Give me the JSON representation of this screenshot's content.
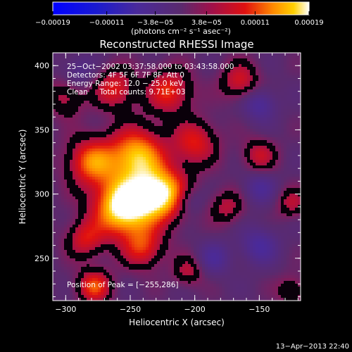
{
  "chart_data": {
    "type": "heatmap",
    "title": "Reconstructed RHESSI Image",
    "xlabel": "Heliocentric X (arcsec)",
    "ylabel": "Heliocentric Y (arcsec)",
    "xlim": [
      -310,
      -118
    ],
    "ylim": [
      217,
      410
    ],
    "x_ticks": [
      -300,
      -250,
      -200,
      -150
    ],
    "x_tick_labels": [
      "−300",
      "−250",
      "−200",
      "−150"
    ],
    "y_ticks": [
      250,
      300,
      350,
      400
    ],
    "y_tick_labels": [
      "250",
      "300",
      "350",
      "400"
    ],
    "colorbar": {
      "min": -0.00019,
      "max": 0.00019,
      "ticks": [
        -0.00019,
        -0.00011,
        -3.8e-05,
        3.8e-05,
        0.00011,
        0.00019
      ],
      "tick_labels": [
        "−0.00019",
        "−0.00011",
        "−3.8e−05",
        "3.8e−05",
        "0.00011",
        "0.00019"
      ],
      "unit_label": "(photons cm⁻² s⁻¹ asec⁻²)"
    },
    "annotations": [
      "25−Oct−2002 03:37:58.000 to 03:43:58.000",
      "Detectors: 4F 5F 6F 7F 8F, Att 0",
      "Energy Range: 12.0 − 25.0 keV",
      "Clean     Total counts: 9.71E+03"
    ],
    "peak_label": "Position of Peak = [−255,286]",
    "peak_position": [
      -255,
      286
    ],
    "blobs": [
      {
        "x": -255,
        "y": 290,
        "v": 1.0,
        "s": 16
      },
      {
        "x": -225,
        "y": 300,
        "v": 0.85,
        "s": 14
      },
      {
        "x": -245,
        "y": 330,
        "v": 0.75,
        "s": 15
      },
      {
        "x": -280,
        "y": 325,
        "v": 0.6,
        "s": 13
      },
      {
        "x": -262,
        "y": 382,
        "v": 0.45,
        "s": 11
      },
      {
        "x": -220,
        "y": 380,
        "v": 0.5,
        "s": 12
      },
      {
        "x": -200,
        "y": 340,
        "v": 0.45,
        "s": 12
      },
      {
        "x": -165,
        "y": 388,
        "v": 0.4,
        "s": 10
      },
      {
        "x": -150,
        "y": 330,
        "v": 0.35,
        "s": 9
      },
      {
        "x": -240,
        "y": 258,
        "v": 0.45,
        "s": 11
      },
      {
        "x": -285,
        "y": 265,
        "v": 0.4,
        "s": 10
      },
      {
        "x": -278,
        "y": 228,
        "v": 0.55,
        "s": 9
      },
      {
        "x": -175,
        "y": 290,
        "v": 0.3,
        "s": 9
      },
      {
        "x": -205,
        "y": 240,
        "v": 0.3,
        "s": 8
      },
      {
        "x": -125,
        "y": 293,
        "v": 0.3,
        "s": 8
      },
      {
        "x": -125,
        "y": 225,
        "v": 0.25,
        "s": 8
      },
      {
        "x": -300,
        "y": 375,
        "v": 0.3,
        "s": 10
      },
      {
        "x": -150,
        "y": 370,
        "v": -0.3,
        "s": 9
      },
      {
        "x": -150,
        "y": 305,
        "v": -0.25,
        "s": 9
      },
      {
        "x": -150,
        "y": 260,
        "v": -0.3,
        "s": 10
      },
      {
        "x": -185,
        "y": 250,
        "v": -0.25,
        "s": 9
      },
      {
        "x": -205,
        "y": 295,
        "v": -0.25,
        "s": 8
      },
      {
        "x": -290,
        "y": 395,
        "v": -0.2,
        "s": 9
      }
    ]
  },
  "footer": {
    "timestamp": "13−Apr−2013 22:40"
  }
}
